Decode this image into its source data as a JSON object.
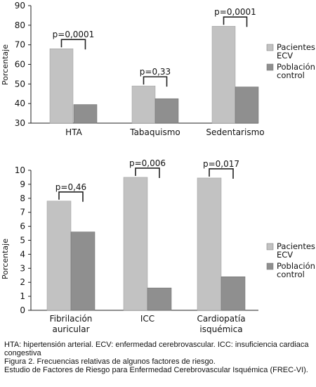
{
  "colors": {
    "ecv": "#c2c2c2",
    "control": "#8f8f8f",
    "axis": "#222222"
  },
  "chart_data": [
    {
      "type": "bar",
      "ylabel": "Porcentaje",
      "ylim": [
        30,
        90
      ],
      "yticks": [
        30,
        40,
        50,
        60,
        70,
        80,
        90
      ],
      "categories": [
        "HTA",
        "Tabaquismo",
        "Sedentarismo"
      ],
      "series": [
        {
          "name": "Pacientes ECV",
          "values": [
            68,
            49,
            79.5
          ]
        },
        {
          "name": "Población control",
          "values": [
            39.5,
            42.5,
            48.5
          ]
        }
      ],
      "annotations": [
        "p=0,0001",
        "p=0,33",
        "p=0,0001"
      ],
      "legend": [
        "Pacientes ECV",
        "Población control"
      ],
      "legend_position": "right",
      "grid": false
    },
    {
      "type": "bar",
      "ylabel": "Porcentaje",
      "ylim": [
        0,
        10
      ],
      "yticks": [
        0,
        1,
        2,
        3,
        4,
        5,
        6,
        7,
        8,
        9,
        10
      ],
      "categories": [
        "Fibrilación auricular",
        "ICC",
        "Cardiopatía isquémica"
      ],
      "series": [
        {
          "name": "Pacientes ECV",
          "values": [
            7.8,
            9.5,
            9.45
          ]
        },
        {
          "name": "Población control",
          "values": [
            5.6,
            1.6,
            2.4
          ]
        }
      ],
      "annotations": [
        "p=0,46",
        "p=0,006",
        "p=0,017"
      ],
      "legend": [
        "Pacientes ECV",
        "Población control"
      ],
      "legend_position": "right",
      "grid": false
    }
  ],
  "caption": {
    "line1": "HTA: hipertensión arterial. ECV: enfermedad cerebrovascular. ICC: insuficiencia cardiaca congestiva",
    "line2": "Figura 2. Frecuencias relativas de algunos factores de riesgo.",
    "line3": "Estudio de Factores de Riesgo para Enfermedad Cerebrovascular Isquémica (FREC-VI)."
  }
}
